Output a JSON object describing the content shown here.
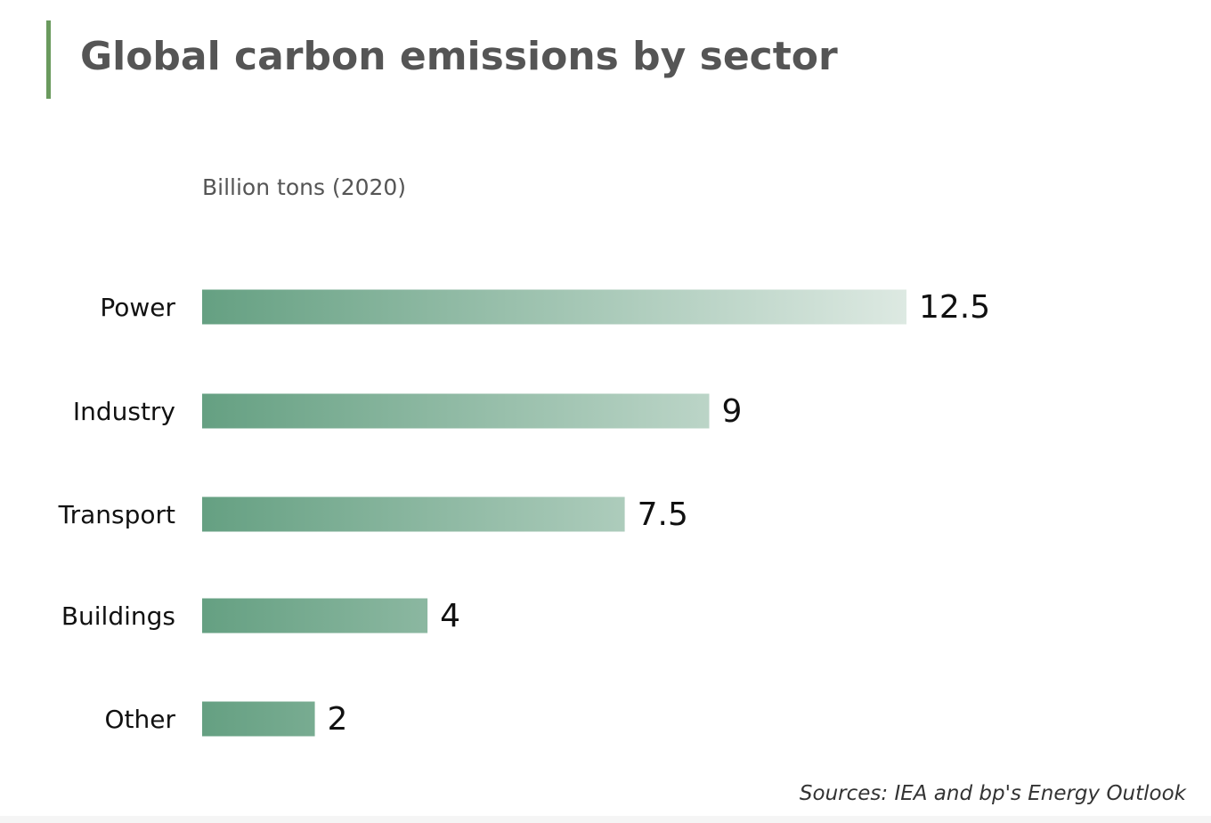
{
  "chart_data": {
    "type": "bar",
    "orientation": "horizontal",
    "title": "Global carbon emissions by sector",
    "subtitle": "Billion tons (2020)",
    "categories": [
      "Power",
      "Industry",
      "Transport",
      "Buildings",
      "Other"
    ],
    "values": [
      12.5,
      9,
      7.5,
      4,
      2
    ],
    "value_labels": [
      "12.5",
      "9",
      "7.5",
      "4",
      "2"
    ],
    "xlim": [
      0,
      12.5
    ],
    "grid": false,
    "source": "Sources: IEA and bp's Energy Outlook"
  },
  "colors": {
    "accent": "#6a9a5e",
    "bar_start": "#65a082",
    "bar_end": "#dde9e2"
  }
}
